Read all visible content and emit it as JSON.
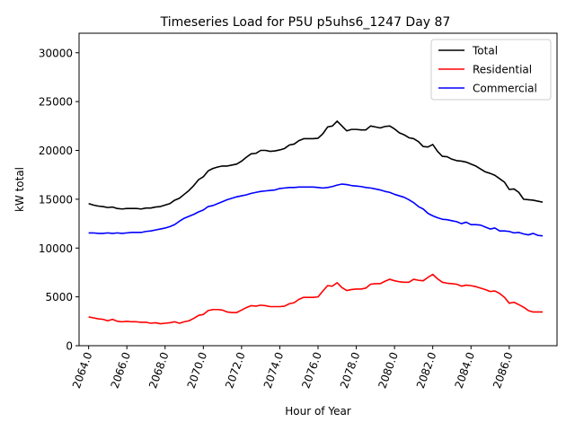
{
  "chart_data": {
    "type": "line",
    "title": "Timeseries Load for P5U p5uhs6_1247  Day 87",
    "xlabel": "Hour of Year",
    "ylabel": "kW total",
    "xlim": [
      2063.5,
      2088.5
    ],
    "ylim": [
      0,
      32000
    ],
    "x_ticks": [
      2064,
      2066,
      2068,
      2070,
      2072,
      2074,
      2076,
      2078,
      2080,
      2082,
      2084,
      2086
    ],
    "x_tick_labels": [
      "2064.0",
      "2066.0",
      "2068.0",
      "2070.0",
      "2072.0",
      "2074.0",
      "2076.0",
      "2078.0",
      "2080.0",
      "2082.0",
      "2084.0",
      "2086.0"
    ],
    "y_ticks": [
      0,
      5000,
      10000,
      15000,
      20000,
      25000,
      30000
    ],
    "y_tick_labels": [
      "0",
      "5000",
      "10000",
      "15000",
      "20000",
      "25000",
      "30000"
    ],
    "grid": false,
    "legend_position": "top-right",
    "x": [
      2064.0,
      2064.25,
      2064.5,
      2064.75,
      2065.0,
      2065.25,
      2065.5,
      2065.75,
      2066.0,
      2066.25,
      2066.5,
      2066.75,
      2067.0,
      2067.25,
      2067.5,
      2067.75,
      2068.0,
      2068.25,
      2068.5,
      2068.75,
      2069.0,
      2069.25,
      2069.5,
      2069.75,
      2070.0,
      2070.25,
      2070.5,
      2070.75,
      2071.0,
      2071.25,
      2071.5,
      2071.75,
      2072.0,
      2072.25,
      2072.5,
      2072.75,
      2073.0,
      2073.25,
      2073.5,
      2073.75,
      2074.0,
      2074.25,
      2074.5,
      2074.75,
      2075.0,
      2075.25,
      2075.5,
      2075.75,
      2076.0,
      2076.25,
      2076.5,
      2076.75,
      2077.0,
      2077.25,
      2077.5,
      2077.75,
      2078.0,
      2078.25,
      2078.5,
      2078.75,
      2079.0,
      2079.25,
      2079.5,
      2079.75,
      2080.0,
      2080.25,
      2080.5,
      2080.75,
      2081.0,
      2081.25,
      2081.5,
      2081.75,
      2082.0,
      2082.25,
      2082.5,
      2082.75,
      2083.0,
      2083.25,
      2083.5,
      2083.75,
      2084.0,
      2084.25,
      2084.5,
      2084.75,
      2085.0,
      2085.25,
      2085.5,
      2085.75,
      2086.0,
      2086.25,
      2086.5,
      2086.75,
      2087.0,
      2087.25,
      2087.5,
      2087.75
    ],
    "series": [
      {
        "name": "Total",
        "color": "#000000",
        "values": [
          14550,
          14400,
          14300,
          14250,
          14150,
          14200,
          14050,
          14000,
          14050,
          14050,
          14050,
          14000,
          14100,
          14100,
          14200,
          14250,
          14400,
          14550,
          14900,
          15100,
          15500,
          15900,
          16400,
          17000,
          17300,
          17900,
          18150,
          18300,
          18400,
          18400,
          18500,
          18600,
          18900,
          19300,
          19650,
          19700,
          20000,
          20000,
          19900,
          19950,
          20050,
          20200,
          20550,
          20650,
          21000,
          21200,
          21200,
          21200,
          21250,
          21700,
          22400,
          22500,
          23000,
          22500,
          22000,
          22150,
          22150,
          22100,
          22100,
          22500,
          22400,
          22300,
          22450,
          22500,
          22200,
          21800,
          21600,
          21300,
          21200,
          20900,
          20400,
          20350,
          20600,
          19900,
          19400,
          19350,
          19100,
          18950,
          18900,
          18800,
          18600,
          18400,
          18100,
          17800,
          17650,
          17450,
          17100,
          16750,
          16000,
          16050,
          15700,
          15000,
          14950,
          14900,
          14800,
          14700
        ]
      },
      {
        "name": "Residential",
        "color": "#ff0000",
        "values": [
          2950,
          2850,
          2750,
          2700,
          2550,
          2700,
          2500,
          2450,
          2500,
          2450,
          2450,
          2400,
          2400,
          2300,
          2350,
          2250,
          2300,
          2350,
          2450,
          2300,
          2450,
          2550,
          2800,
          3100,
          3200,
          3600,
          3700,
          3700,
          3650,
          3450,
          3400,
          3400,
          3650,
          3900,
          4100,
          4050,
          4150,
          4100,
          4000,
          4000,
          4000,
          4050,
          4300,
          4400,
          4750,
          4950,
          4950,
          4950,
          5000,
          5600,
          6150,
          6100,
          6450,
          5950,
          5650,
          5750,
          5800,
          5800,
          5900,
          6300,
          6350,
          6350,
          6600,
          6800,
          6650,
          6550,
          6500,
          6500,
          6800,
          6700,
          6650,
          7000,
          7300,
          6850,
          6500,
          6400,
          6350,
          6300,
          6100,
          6200,
          6150,
          6050,
          5900,
          5750,
          5550,
          5600,
          5350,
          4950,
          4350,
          4450,
          4200,
          3950,
          3600,
          3450,
          3450,
          3450
        ]
      },
      {
        "name": "Commercial",
        "color": "#0000ff",
        "values": [
          11550,
          11550,
          11500,
          11500,
          11550,
          11500,
          11550,
          11500,
          11550,
          11600,
          11600,
          11600,
          11700,
          11750,
          11850,
          11950,
          12050,
          12200,
          12400,
          12750,
          13050,
          13250,
          13450,
          13700,
          13900,
          14250,
          14350,
          14550,
          14750,
          14950,
          15100,
          15250,
          15350,
          15450,
          15600,
          15700,
          15800,
          15850,
          15900,
          15950,
          16100,
          16150,
          16200,
          16200,
          16250,
          16250,
          16250,
          16250,
          16200,
          16150,
          16200,
          16300,
          16450,
          16550,
          16500,
          16400,
          16350,
          16300,
          16200,
          16150,
          16050,
          15950,
          15800,
          15700,
          15500,
          15350,
          15200,
          14950,
          14650,
          14250,
          14000,
          13550,
          13300,
          13100,
          12950,
          12900,
          12800,
          12700,
          12500,
          12650,
          12400,
          12400,
          12350,
          12150,
          11950,
          12050,
          11750,
          11750,
          11700,
          11550,
          11600,
          11450,
          11350,
          11500,
          11300,
          11250
        ]
      }
    ]
  }
}
